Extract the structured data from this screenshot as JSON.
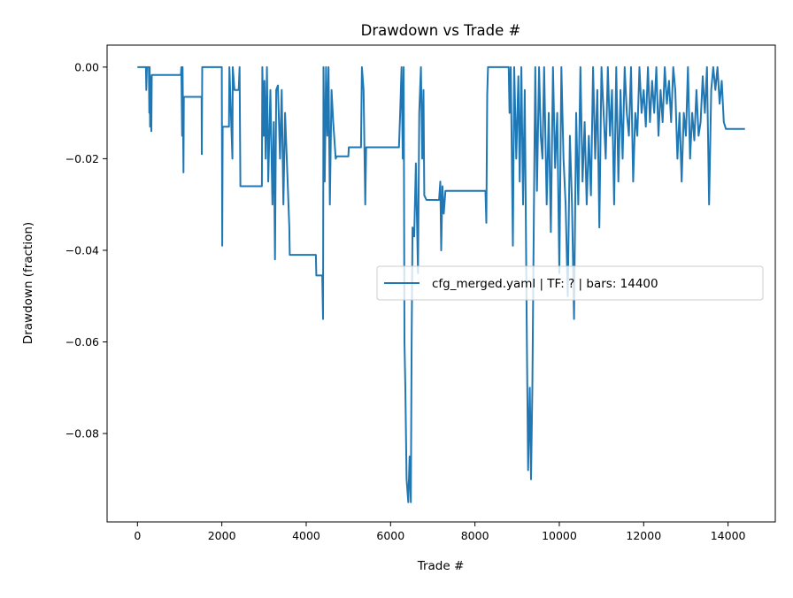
{
  "chart_data": {
    "type": "line",
    "title": "Drawdown vs Trade #",
    "xlabel": "Trade #",
    "ylabel": "Drawdown (fraction)",
    "xlim": [
      -720,
      15120
    ],
    "ylim": [
      -0.0993,
      0.0048
    ],
    "xticks": [
      0,
      2000,
      4000,
      6000,
      8000,
      10000,
      12000,
      14000
    ],
    "xtick_labels": [
      "0",
      "2000",
      "4000",
      "6000",
      "8000",
      "10000",
      "12000",
      "14000"
    ],
    "yticks": [
      0,
      -0.02,
      -0.04,
      -0.06,
      -0.08
    ],
    "ytick_labels": [
      "0.00",
      "−0.02",
      "−0.04",
      "−0.06",
      "−0.08"
    ],
    "grid": false,
    "legend_placement": "center-right",
    "series": [
      {
        "name": "cfg_merged.yaml | TF: ? | bars: 14400",
        "color": "#1f77b4",
        "points": [
          [
            0,
            0
          ],
          [
            200,
            0
          ],
          [
            210,
            -0.005
          ],
          [
            225,
            0
          ],
          [
            270,
            0
          ],
          [
            280,
            -0.01
          ],
          [
            290,
            0
          ],
          [
            300,
            -0.013
          ],
          [
            310,
            -0.002
          ],
          [
            330,
            -0.014
          ],
          [
            340,
            -0.0017
          ],
          [
            1030,
            -0.0017
          ],
          [
            1040,
            0
          ],
          [
            1060,
            -0.015
          ],
          [
            1070,
            0
          ],
          [
            1090,
            -0.023
          ],
          [
            1100,
            -0.0065
          ],
          [
            1520,
            -0.0065
          ],
          [
            1525,
            -0.019
          ],
          [
            1535,
            0
          ],
          [
            2000,
            0
          ],
          [
            2010,
            -0.039
          ],
          [
            2020,
            -0.013
          ],
          [
            2170,
            -0.013
          ],
          [
            2180,
            0
          ],
          [
            2250,
            -0.02
          ],
          [
            2260,
            0
          ],
          [
            2300,
            -0.005
          ],
          [
            2400,
            -0.005
          ],
          [
            2420,
            0
          ],
          [
            2440,
            -0.026
          ],
          [
            2950,
            -0.026
          ],
          [
            2960,
            0
          ],
          [
            2990,
            -0.015
          ],
          [
            3010,
            -0.003
          ],
          [
            3040,
            -0.02
          ],
          [
            3070,
            0
          ],
          [
            3100,
            -0.025
          ],
          [
            3150,
            -0.005
          ],
          [
            3200,
            -0.03
          ],
          [
            3230,
            -0.012
          ],
          [
            3260,
            -0.042
          ],
          [
            3290,
            -0.005
          ],
          [
            3330,
            -0.004
          ],
          [
            3380,
            -0.02
          ],
          [
            3420,
            -0.005
          ],
          [
            3460,
            -0.03
          ],
          [
            3500,
            -0.01
          ],
          [
            3560,
            -0.025
          ],
          [
            3600,
            -0.035
          ],
          [
            3610,
            -0.041
          ],
          [
            4230,
            -0.041
          ],
          [
            4240,
            -0.0455
          ],
          [
            4380,
            -0.0455
          ],
          [
            4400,
            -0.055
          ],
          [
            4410,
            0
          ],
          [
            4440,
            -0.025
          ],
          [
            4470,
            0
          ],
          [
            4500,
            -0.015
          ],
          [
            4530,
            0
          ],
          [
            4560,
            -0.03
          ],
          [
            4600,
            -0.005
          ],
          [
            4640,
            -0.012
          ],
          [
            4700,
            -0.02
          ],
          [
            4720,
            -0.0195
          ],
          [
            5000,
            -0.0195
          ],
          [
            5010,
            -0.0175
          ],
          [
            5300,
            -0.0175
          ],
          [
            5320,
            0
          ],
          [
            5360,
            -0.005
          ],
          [
            5400,
            -0.03
          ],
          [
            5420,
            -0.0175
          ],
          [
            6200,
            -0.0175
          ],
          [
            6230,
            -0.009
          ],
          [
            6260,
            0
          ],
          [
            6290,
            -0.02
          ],
          [
            6310,
            0
          ],
          [
            6330,
            -0.06
          ],
          [
            6350,
            -0.07
          ],
          [
            6380,
            -0.09
          ],
          [
            6420,
            -0.095
          ],
          [
            6450,
            -0.085
          ],
          [
            6480,
            -0.095
          ],
          [
            6500,
            -0.06
          ],
          [
            6520,
            -0.035
          ],
          [
            6560,
            -0.037
          ],
          [
            6600,
            -0.021
          ],
          [
            6650,
            -0.045
          ],
          [
            6680,
            -0.01
          ],
          [
            6720,
            0
          ],
          [
            6750,
            -0.02
          ],
          [
            6780,
            -0.005
          ],
          [
            6800,
            -0.028
          ],
          [
            6850,
            -0.029
          ],
          [
            7150,
            -0.029
          ],
          [
            7180,
            -0.025
          ],
          [
            7200,
            -0.04
          ],
          [
            7230,
            -0.026
          ],
          [
            7260,
            -0.032
          ],
          [
            7300,
            -0.027
          ],
          [
            8250,
            -0.027
          ],
          [
            8270,
            -0.034
          ],
          [
            8290,
            -0.006
          ],
          [
            8310,
            0
          ],
          [
            8800,
            0
          ],
          [
            8820,
            -0.01
          ],
          [
            8850,
            0
          ],
          [
            8900,
            -0.039
          ],
          [
            8930,
            0
          ],
          [
            8980,
            -0.02
          ],
          [
            9030,
            -0.002
          ],
          [
            9060,
            -0.025
          ],
          [
            9100,
            0
          ],
          [
            9140,
            -0.03
          ],
          [
            9180,
            -0.005
          ],
          [
            9230,
            -0.06
          ],
          [
            9260,
            -0.088
          ],
          [
            9300,
            -0.07
          ],
          [
            9330,
            -0.09
          ],
          [
            9360,
            -0.07
          ],
          [
            9400,
            -0.028
          ],
          [
            9430,
            0
          ],
          [
            9470,
            -0.027
          ],
          [
            9520,
            0
          ],
          [
            9560,
            -0.015
          ],
          [
            9600,
            -0.02
          ],
          [
            9640,
            0
          ],
          [
            9700,
            -0.03
          ],
          [
            9750,
            -0.01
          ],
          [
            9800,
            -0.036
          ],
          [
            9850,
            0
          ],
          [
            9900,
            -0.022
          ],
          [
            9950,
            -0.01
          ],
          [
            10000,
            -0.045
          ],
          [
            10050,
            0
          ],
          [
            10100,
            -0.02
          ],
          [
            10150,
            -0.03
          ],
          [
            10200,
            -0.05
          ],
          [
            10250,
            -0.015
          ],
          [
            10300,
            -0.03
          ],
          [
            10350,
            -0.055
          ],
          [
            10400,
            -0.01
          ],
          [
            10450,
            -0.03
          ],
          [
            10500,
            0
          ],
          [
            10550,
            -0.025
          ],
          [
            10600,
            -0.012
          ],
          [
            10650,
            -0.03
          ],
          [
            10700,
            -0.015
          ],
          [
            10750,
            -0.028
          ],
          [
            10800,
            0
          ],
          [
            10850,
            -0.02
          ],
          [
            10900,
            -0.005
          ],
          [
            10950,
            -0.035
          ],
          [
            11000,
            0
          ],
          [
            11050,
            -0.01
          ],
          [
            11100,
            -0.02
          ],
          [
            11150,
            0
          ],
          [
            11200,
            -0.015
          ],
          [
            11250,
            -0.005
          ],
          [
            11300,
            -0.03
          ],
          [
            11350,
            0
          ],
          [
            11400,
            -0.025
          ],
          [
            11450,
            -0.005
          ],
          [
            11500,
            -0.02
          ],
          [
            11550,
            0
          ],
          [
            11600,
            -0.01
          ],
          [
            11650,
            -0.015
          ],
          [
            11700,
            0
          ],
          [
            11750,
            -0.025
          ],
          [
            11800,
            -0.01
          ],
          [
            11850,
            -0.015
          ],
          [
            11900,
            0
          ],
          [
            11950,
            -0.01
          ],
          [
            12000,
            -0.005
          ],
          [
            12050,
            -0.013
          ],
          [
            12100,
            0
          ],
          [
            12150,
            -0.012
          ],
          [
            12200,
            -0.003
          ],
          [
            12250,
            -0.01
          ],
          [
            12300,
            0
          ],
          [
            12350,
            -0.015
          ],
          [
            12400,
            -0.005
          ],
          [
            12450,
            -0.012
          ],
          [
            12500,
            0
          ],
          [
            12550,
            -0.008
          ],
          [
            12600,
            -0.003
          ],
          [
            12650,
            -0.012
          ],
          [
            12700,
            0
          ],
          [
            12750,
            -0.005
          ],
          [
            12800,
            -0.02
          ],
          [
            12850,
            -0.01
          ],
          [
            12900,
            -0.025
          ],
          [
            12950,
            -0.01
          ],
          [
            13000,
            -0.015
          ],
          [
            13050,
            0
          ],
          [
            13100,
            -0.02
          ],
          [
            13150,
            -0.01
          ],
          [
            13200,
            -0.016
          ],
          [
            13250,
            -0.005
          ],
          [
            13300,
            -0.015
          ],
          [
            13350,
            -0.012
          ],
          [
            13400,
            -0.002
          ],
          [
            13450,
            -0.01
          ],
          [
            13500,
            0
          ],
          [
            13550,
            -0.03
          ],
          [
            13600,
            -0.005
          ],
          [
            13650,
            0
          ],
          [
            13700,
            -0.005
          ],
          [
            13750,
            0
          ],
          [
            13800,
            -0.008
          ],
          [
            13850,
            -0.003
          ],
          [
            13900,
            -0.012
          ],
          [
            13950,
            -0.0135
          ],
          [
            14400,
            -0.0135
          ]
        ]
      }
    ]
  }
}
